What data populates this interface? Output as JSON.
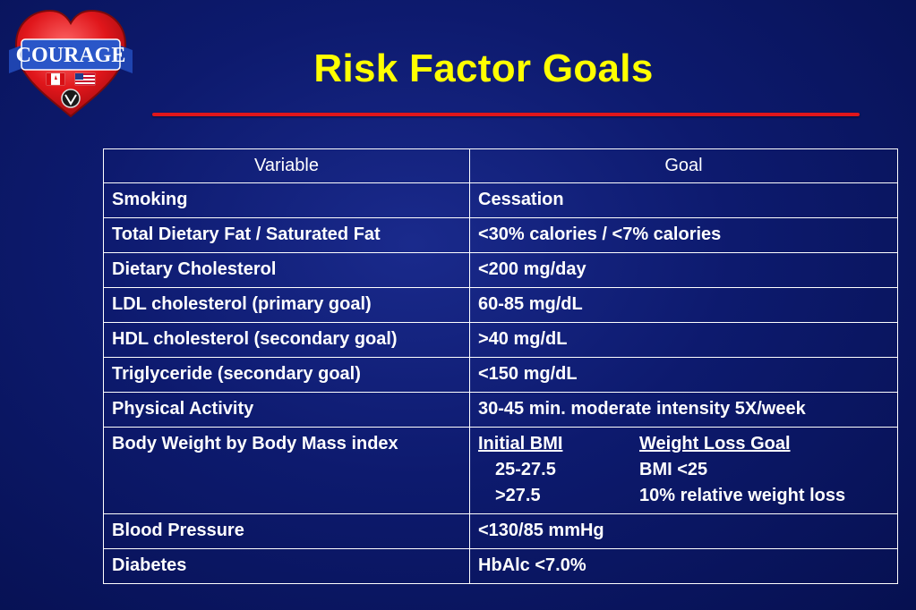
{
  "logo": {
    "text": "COURAGE",
    "flag_colors": {
      "heart": "#e0161b",
      "banner": "#2a56c8"
    }
  },
  "title": "Risk Factor Goals",
  "colors": {
    "title": "#ffff00",
    "rule": "#e0161b",
    "background": "#0d1a6e"
  },
  "table": {
    "headers": [
      "Variable",
      "Goal"
    ],
    "rows": [
      {
        "variable": "Smoking",
        "goal": "Cessation"
      },
      {
        "variable": "Total Dietary Fat / Saturated Fat",
        "goal": "<30% calories / <7% calories"
      },
      {
        "variable": "Dietary Cholesterol",
        "goal": "<200 mg/day"
      },
      {
        "variable": "LDL cholesterol (primary goal)",
        "goal": "60-85 mg/dL"
      },
      {
        "variable": "HDL cholesterol (secondary goal)",
        "goal": ">40 mg/dL"
      },
      {
        "variable": "Triglyceride (secondary goal)",
        "goal": "<150 mg/dL"
      },
      {
        "variable": "Physical Activity",
        "goal": "30-45 min. moderate intensity 5X/week"
      },
      {
        "variable": "Body Weight by Body Mass index",
        "goal": ""
      },
      {
        "variable": "Blood Pressure",
        "goal": "<130/85 mmHg"
      },
      {
        "variable": "Diabetes",
        "goal": "HbAlc <7.0%"
      }
    ],
    "bmi": {
      "col1_header": "Initial BMI",
      "col2_header": "Weight Loss Goal",
      "rows": [
        {
          "initial": "25-27.5",
          "goal": "BMI <25"
        },
        {
          "initial": ">27.5",
          "goal": "10% relative weight loss"
        }
      ]
    }
  }
}
